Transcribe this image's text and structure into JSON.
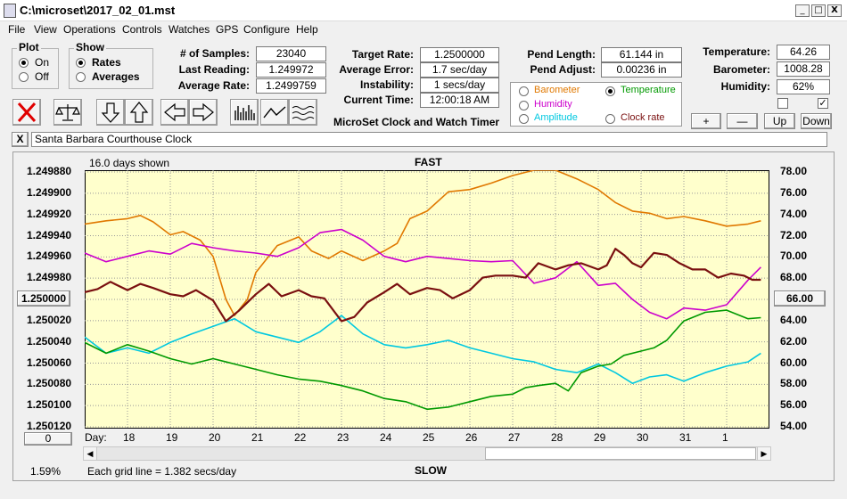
{
  "window": {
    "title": "C:\\microset\\2017_02_01.mst",
    "minimize": "_",
    "restore": "□",
    "close": "X"
  },
  "menu": [
    "File",
    "View",
    "Operations",
    "Controls",
    "Watches",
    "GPS",
    "Configure",
    "Help"
  ],
  "plot_group": {
    "title": "Plot",
    "options": [
      "On",
      "Off"
    ],
    "selected": 0
  },
  "show_group": {
    "title": "Show",
    "options": [
      "Rates",
      "Averages"
    ],
    "selected": 0
  },
  "stats": [
    {
      "label": "# of Samples:",
      "value": "23040"
    },
    {
      "label": "Last Reading:",
      "value": "1.249972"
    },
    {
      "label": "Average Rate:",
      "value": "1.2499759"
    }
  ],
  "rates": [
    {
      "label": "Target Rate:",
      "value": "1.2500000"
    },
    {
      "label": "Average Error:",
      "value": "1.7 sec/day"
    },
    {
      "label": "Instability:",
      "value": "1 secs/day"
    },
    {
      "label": "Current Time:",
      "value": "12:00:18 AM"
    }
  ],
  "app_caption": "MicroSet Clock and Watch Timer",
  "pendulum": [
    {
      "label": "Pend Length:",
      "value": "61.144 in"
    },
    {
      "label": "Pend Adjust:",
      "value": "0.00236 in"
    }
  ],
  "environment": [
    {
      "label": "Temperature:",
      "value": "64.26"
    },
    {
      "label": "Barometer:",
      "value": "1008.28"
    },
    {
      "label": "Humidity:",
      "value": "62%"
    }
  ],
  "checkboxes": [
    false,
    true
  ],
  "second_axis": {
    "options": [
      {
        "label": "Barometer",
        "color": "#e07800",
        "checked": false
      },
      {
        "label": "Temperature",
        "color": "#009900",
        "checked": true
      },
      {
        "label": "Humidity",
        "color": "#cc00cc",
        "checked": false
      },
      {
        "label": "Clock rate",
        "color": "#7a1010",
        "checked": false
      },
      {
        "label": "Amplitude",
        "color": "#00c8e0",
        "checked": false
      }
    ]
  },
  "scale_buttons": [
    "+",
    "—",
    "Up",
    "Down"
  ],
  "toolbar_icons": [
    "clear-icon",
    "balance-icon",
    "arrow-down-icon",
    "arrow-up-icon",
    "arrow-left-icon",
    "arrow-right-icon",
    "histogram-icon",
    "line-plot-icon",
    "wave-icon"
  ],
  "clock_name": "Santa Barbara Courthouse Clock",
  "clear_name_button": "X",
  "chart_info": {
    "days_shown": "16.0 days shown",
    "top_label": "FAST",
    "bottom_label": "SLOW",
    "grid_note": "Each grid line = 1.382 secs/day",
    "left_percent": "1.59%",
    "offset_button": "0",
    "center_left": "1.250000",
    "center_right": "66.00",
    "day_label": "Day:"
  },
  "chart_data": {
    "type": "line",
    "y_left_ticks": [
      "1.249880",
      "1.249900",
      "1.249920",
      "1.249940",
      "1.249960",
      "1.249980",
      "1.250000",
      "1.250020",
      "1.250040",
      "1.250060",
      "1.250080",
      "1.250100",
      "1.250120"
    ],
    "y_right_ticks": [
      "78.00",
      "76.00",
      "74.00",
      "72.00",
      "70.00",
      "68.00",
      "66.00",
      "64.00",
      "62.00",
      "60.00",
      "58.00",
      "56.00",
      "54.00"
    ],
    "x_ticks": [
      "18",
      "19",
      "20",
      "21",
      "22",
      "23",
      "24",
      "25",
      "26",
      "27",
      "28",
      "29",
      "30",
      "31",
      "1"
    ],
    "x_range": [
      17.0,
      33.0
    ],
    "y_left_range": [
      1.24987,
      1.25012
    ],
    "y_right_range": [
      54,
      78
    ],
    "grid": true,
    "series": [
      {
        "color": "#e07800",
        "x": [
          17.0,
          17.5,
          18.0,
          18.3,
          18.6,
          19.0,
          19.3,
          19.7,
          20.0,
          20.3,
          20.5,
          20.8,
          21.0,
          21.5,
          22.0,
          22.3,
          22.7,
          23.0,
          23.5,
          24.0,
          24.3,
          24.6,
          25.0,
          25.5,
          26.0,
          26.5,
          27.0,
          27.5,
          28.0,
          28.5,
          29.0,
          29.4,
          29.8,
          30.2,
          30.6,
          31.0,
          31.5,
          32.0,
          32.5,
          32.8
        ],
        "y": [
          73.0,
          73.3,
          73.5,
          73.8,
          73.2,
          72.0,
          72.3,
          71.5,
          70.0,
          66.0,
          64.5,
          66.0,
          68.5,
          71.0,
          71.8,
          70.5,
          69.8,
          70.5,
          69.6,
          70.5,
          71.2,
          73.5,
          74.2,
          76.0,
          76.2,
          76.8,
          77.5,
          78.0,
          78.0,
          77.2,
          76.2,
          75.0,
          74.2,
          74.0,
          73.5,
          73.7,
          73.3,
          72.8,
          73.0,
          73.3
        ]
      },
      {
        "color": "#cc00cc",
        "x": [
          17.0,
          17.5,
          18.0,
          18.5,
          19.0,
          19.5,
          20.0,
          20.5,
          21.0,
          21.5,
          22.0,
          22.5,
          23.0,
          23.5,
          24.0,
          24.5,
          25.0,
          25.5,
          26.0,
          26.5,
          27.0,
          27.5,
          28.0,
          28.5,
          29.0,
          29.4,
          29.8,
          30.2,
          30.6,
          31.0,
          31.5,
          32.0,
          32.5,
          32.8
        ],
        "y": [
          70.3,
          69.5,
          70.0,
          70.5,
          70.2,
          71.2,
          70.8,
          70.5,
          70.3,
          70.0,
          70.8,
          72.2,
          72.5,
          71.5,
          70.0,
          69.5,
          70.0,
          69.8,
          69.6,
          69.5,
          69.6,
          67.5,
          68.0,
          69.5,
          67.3,
          67.5,
          66.0,
          64.8,
          64.2,
          65.2,
          65.0,
          65.5,
          67.8,
          69.0
        ]
      },
      {
        "color": "#00c8e0",
        "x": [
          17.0,
          17.5,
          18.0,
          18.5,
          19.0,
          19.5,
          20.0,
          20.5,
          21.0,
          21.5,
          22.0,
          22.5,
          23.0,
          23.5,
          24.0,
          24.5,
          25.0,
          25.5,
          26.0,
          26.5,
          27.0,
          27.5,
          28.0,
          28.5,
          29.0,
          29.4,
          29.8,
          30.2,
          30.6,
          31.0,
          31.5,
          32.0,
          32.5,
          32.8
        ],
        "y": [
          62.5,
          61.0,
          61.5,
          61.0,
          62.0,
          62.8,
          63.5,
          64.2,
          63.0,
          62.5,
          62.0,
          63.0,
          64.5,
          62.8,
          61.8,
          61.5,
          61.8,
          62.2,
          61.5,
          61.0,
          60.5,
          60.2,
          59.5,
          59.2,
          60.0,
          59.2,
          58.2,
          58.8,
          59.0,
          58.4,
          59.2,
          59.8,
          60.2,
          61.0
        ]
      },
      {
        "color": "#009900",
        "x": [
          17.0,
          17.5,
          18.0,
          18.5,
          19.0,
          19.5,
          20.0,
          20.5,
          21.0,
          21.5,
          22.0,
          22.5,
          23.0,
          23.5,
          24.0,
          24.5,
          25.0,
          25.5,
          26.0,
          26.5,
          27.0,
          27.3,
          27.6,
          28.0,
          28.3,
          28.6,
          29.0,
          29.3,
          29.6,
          30.0,
          30.3,
          30.6,
          31.0,
          31.5,
          32.0,
          32.5,
          32.8
        ],
        "y": [
          62.0,
          61.0,
          61.8,
          61.2,
          60.5,
          60.0,
          60.5,
          60.0,
          59.5,
          59.0,
          58.6,
          58.4,
          58.0,
          57.5,
          56.8,
          56.5,
          55.8,
          56.0,
          56.5,
          57.0,
          57.2,
          57.8,
          58.0,
          58.2,
          57.5,
          59.2,
          59.8,
          60.0,
          60.8,
          61.2,
          61.5,
          62.2,
          64.0,
          64.8,
          65.0,
          64.2,
          64.3
        ]
      },
      {
        "color": "#7a1010",
        "x": [
          17.0,
          17.3,
          17.6,
          18.0,
          18.3,
          18.6,
          19.0,
          19.3,
          19.6,
          20.0,
          20.3,
          20.6,
          21.0,
          21.3,
          21.6,
          22.0,
          22.3,
          22.6,
          23.0,
          23.3,
          23.6,
          24.0,
          24.3,
          24.6,
          25.0,
          25.3,
          25.6,
          26.0,
          26.3,
          26.6,
          27.0,
          27.3,
          27.6,
          28.0,
          28.3,
          28.6,
          29.0,
          29.2,
          29.4,
          29.6,
          29.8,
          30.0,
          30.3,
          30.6,
          30.9,
          31.2,
          31.5,
          31.8,
          32.1,
          32.4,
          32.6,
          32.8
        ],
        "y": [
          1.249988,
          1.249985,
          1.249978,
          1.249986,
          1.24998,
          1.249984,
          1.24999,
          1.249992,
          1.249986,
          1.249996,
          1.250016,
          1.250006,
          1.24999,
          1.24998,
          1.249992,
          1.249986,
          1.249992,
          1.249994,
          1.250016,
          1.250012,
          1.249998,
          1.249988,
          1.24998,
          1.24999,
          1.249984,
          1.249986,
          1.249994,
          1.249986,
          1.249974,
          1.249972,
          1.249972,
          1.249974,
          1.24996,
          1.249966,
          1.249962,
          1.24996,
          1.249966,
          1.249962,
          1.249946,
          1.249952,
          1.24996,
          1.249964,
          1.24995,
          1.249952,
          1.24996,
          1.249966,
          1.249966,
          1.249974,
          1.24997,
          1.249972,
          1.249976,
          1.249976
        ]
      }
    ]
  }
}
